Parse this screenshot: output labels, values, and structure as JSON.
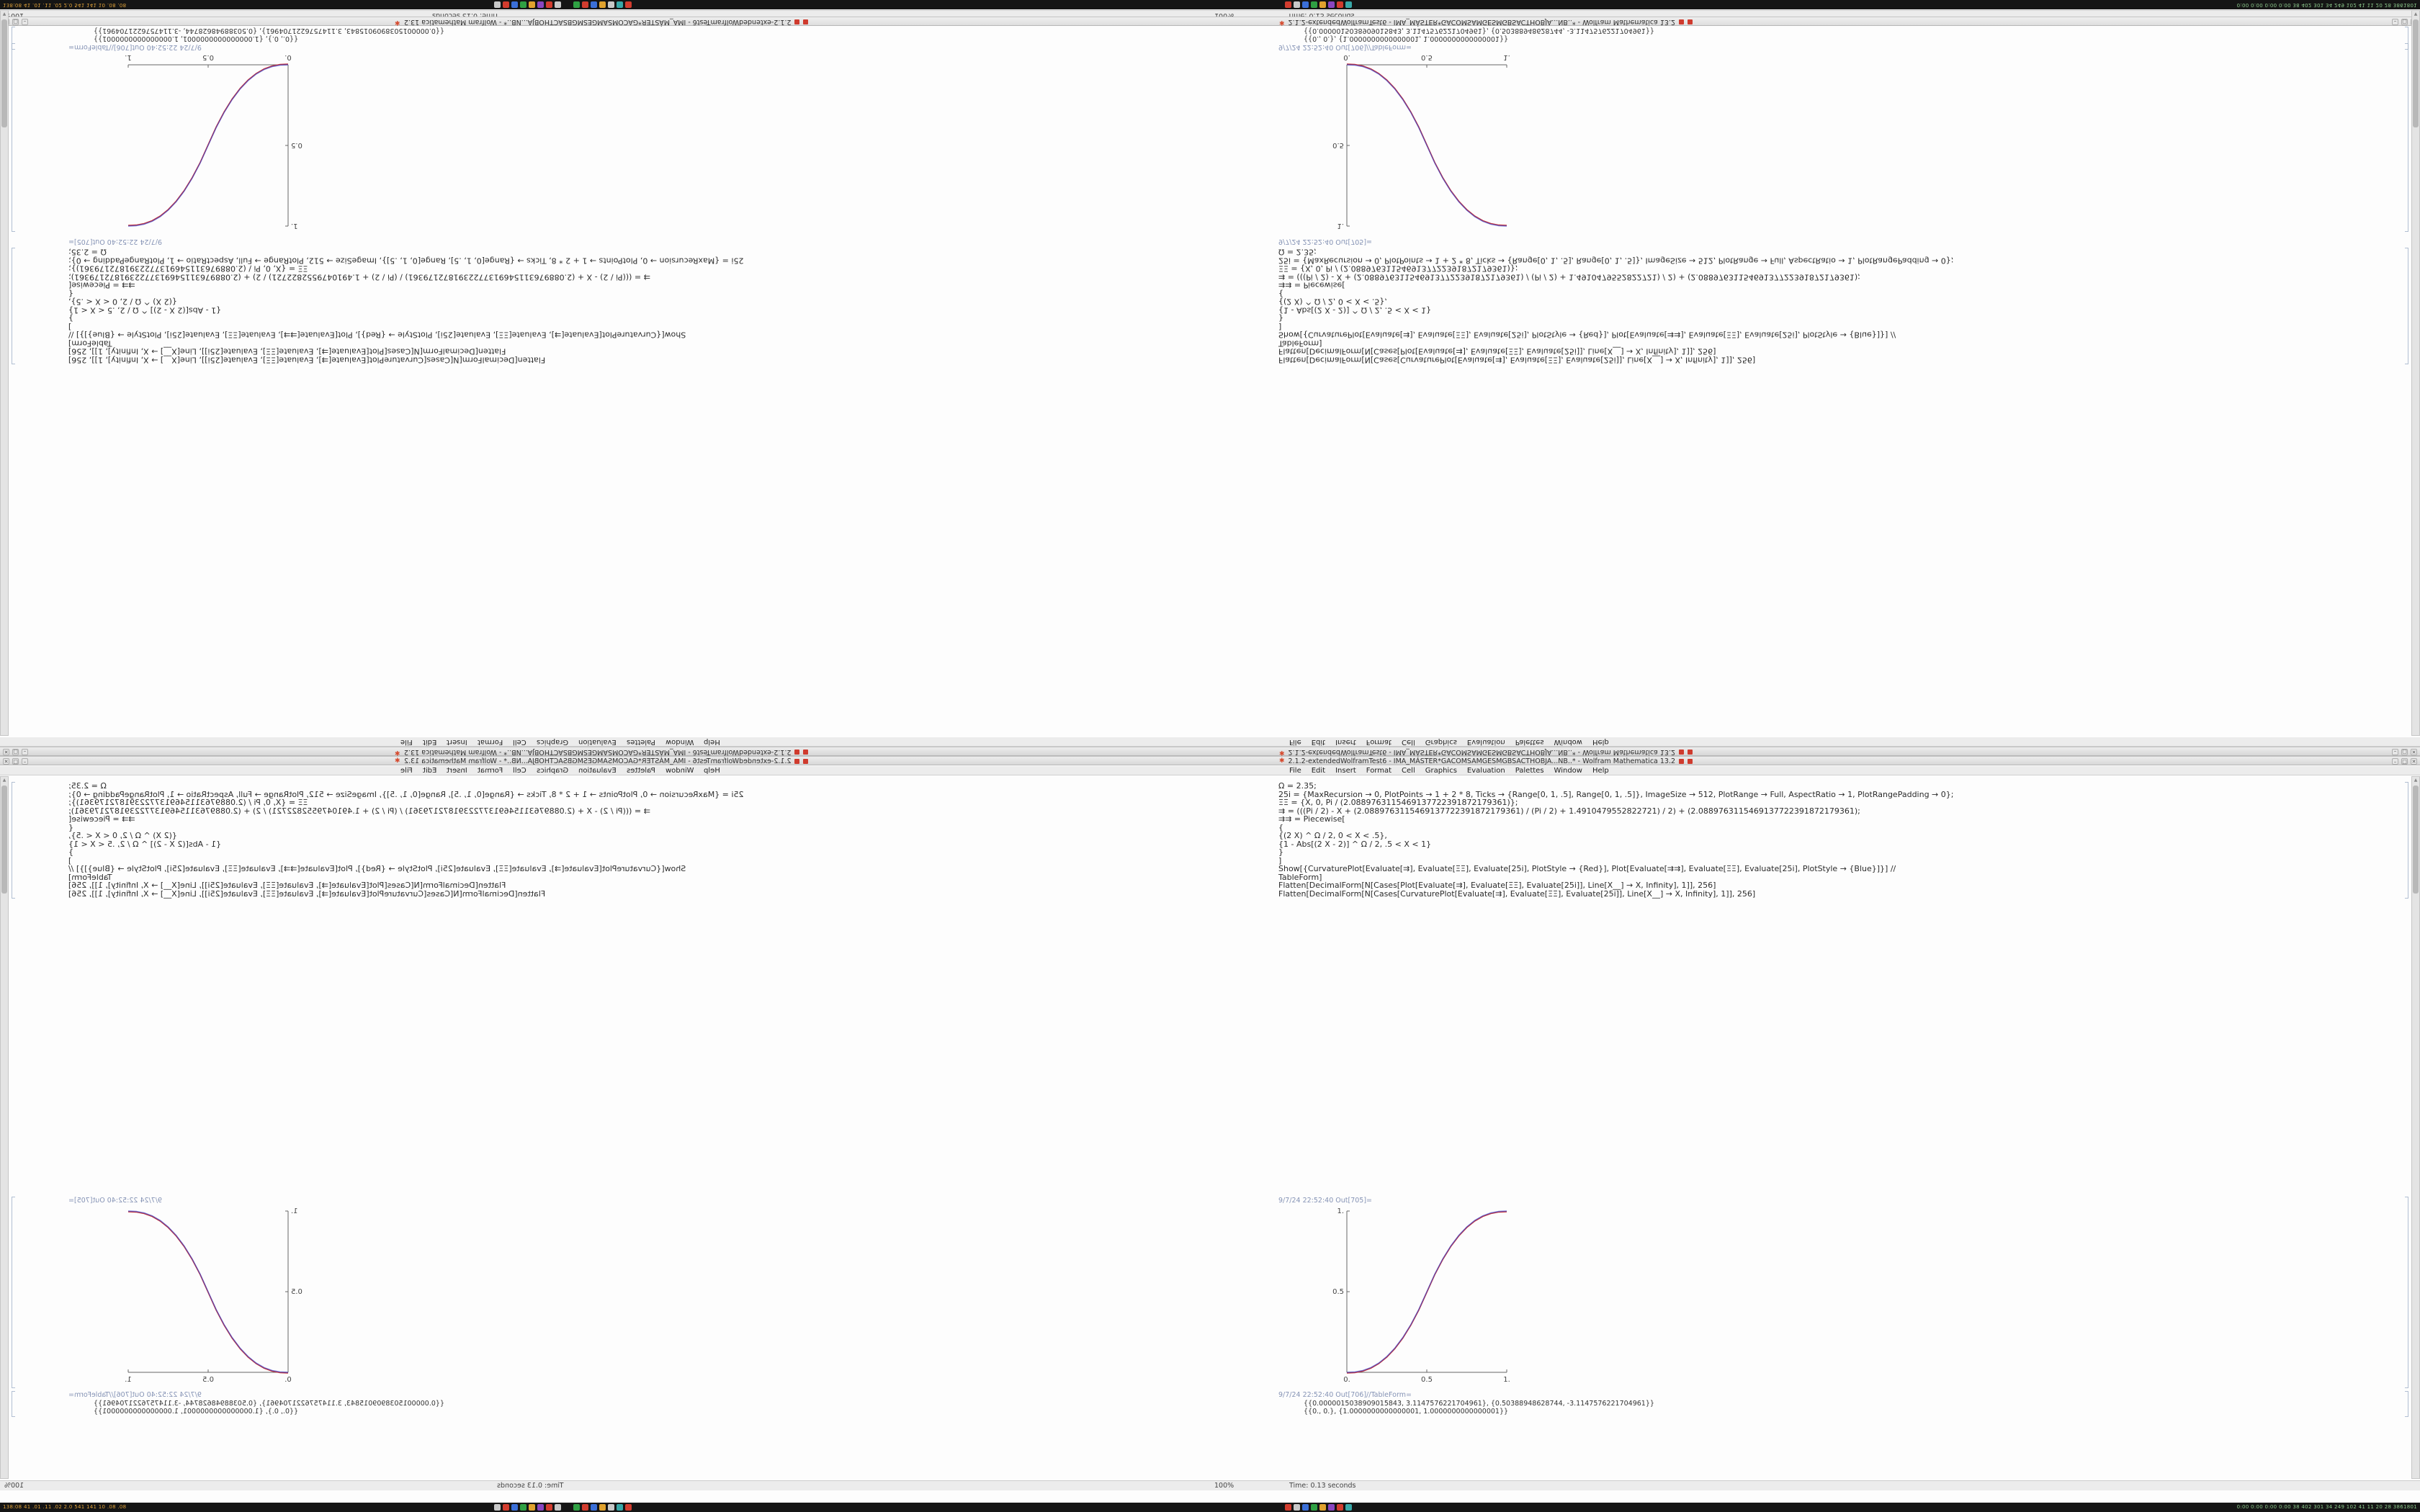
{
  "taskbar": {
    "left_text": "138:08  41 .01 .11 .02  2.0 541 141 10 .08 .08",
    "right_text": "0:00 0:00 0:00 0:00  38 402 301 34 249 102 41 11 20 28  3861801",
    "icon_colors_a": [
      "#c8c8c8",
      "#d23c2e",
      "#3a6fd8",
      "#2fa043",
      "#e0a22e",
      "#8a46c0",
      "#d23c2e",
      "#c8c8c8"
    ],
    "icon_colors_b": [
      "#2fa043",
      "#d23c2e",
      "#3a6fd8",
      "#e0a22e",
      "#c8c8c8",
      "#38a8a8",
      "#d23c2e"
    ],
    "icon_colors_c": [
      "#d23c2e",
      "#c8c8c8",
      "#3a6fd8",
      "#2fa043",
      "#e0a22e",
      "#8a46c0",
      "#d23c2e",
      "#38a8a8"
    ]
  },
  "window": {
    "title": "2.1.2-extendedWolframTest6 - IMA_MÁSTER*GACOMSAMGESMGBSACTHOBJA...NB..* - Wolfram Mathematica 13.2",
    "menu": [
      "File",
      "Edit",
      "Insert",
      "Format",
      "Cell",
      "Graphics",
      "Evaluation",
      "Palettes",
      "Window",
      "Help"
    ],
    "buttons": {
      "minimize": "–",
      "maximize": "□",
      "close": "✕"
    },
    "status_zoom": "100%",
    "status_time": "Time: 0.13 seconds"
  },
  "notebook": {
    "code": [
      "Ω = 2.35;",
      "25i = {MaxRecursion → 0, PlotPoints → 1 + 2 * 8, Ticks → {Range[0, 1, .5], Range[0, 1, .5]}, ImageSize → 512, PlotRange → Full, AspectRatio → 1, PlotRangePadding → 0};",
      "ΞΞ = {X, 0, Pi / (2.0889763115469137722391872179361)};",
      "⇉ = (((Pi / 2) - X + (2.0889763115469137722391872179361) / (Pi / 2) + 1.4910479552822721) / 2) + (2.0889763115469137722391872179361);",
      "⇉⇉ = Piecewise[",
      "{",
      "{(2 X) ^ Ω / 2, 0 < X < .5},",
      "{1 - Abs[(2 X - 2)] ^ Ω / 2, .5 < X < 1}",
      "}",
      "]",
      "Show[{CurvaturePlot[Evaluate[⇉], Evaluate[ΞΞ], Evaluate[25i], PlotStyle → {Red}], Plot[Evaluate[⇉⇉], Evaluate[ΞΞ], Evaluate[25i], PlotStyle → {Blue}]}] //",
      "TableForm]",
      "Flatten[DecimalForm[N[Cases[Plot[Evaluate[⇉], Evaluate[ΞΞ], Evaluate[25i]], Line[X__] → X, Infinity], 1]], 256]",
      "Flatten[DecimalForm[N[Cases[CurvaturePlot[Evaluate[⇉], Evaluate[ΞΞ], Evaluate[25i]], Line[X__] → X, Infinity], 1]], 256]"
    ],
    "out_plot_label": "9/7/24 22:52:40 Out[705]=",
    "out_table_label": "9/7/24 22:52:40 Out[706]//TableForm=",
    "table_lines": [
      "{{0.0000015038909015843, 3.1147576221704961}, {0.50388948628744, -3.1147576221704961}}",
      "{{0., 0.}, {1.0000000000000001, 1.0000000000000001}}"
    ]
  },
  "chart_data": {
    "type": "line",
    "title": "",
    "xlabel": "",
    "ylabel": "",
    "xlim": [
      0,
      1
    ],
    "ylim": [
      0,
      1
    ],
    "grid": false,
    "legend": "none",
    "xticks": [
      "0.",
      "0.5",
      "1."
    ],
    "yticks": [
      "0.",
      "0.5",
      "1."
    ],
    "x": [
      0,
      0.05,
      0.1,
      0.15,
      0.2,
      0.25,
      0.3,
      0.35,
      0.4,
      0.45,
      0.5,
      0.55,
      0.6,
      0.65,
      0.7,
      0.75,
      0.8,
      0.85,
      0.9,
      0.95,
      1
    ],
    "series": [
      {
        "name": "CurvaturePlot (Red)",
        "color": "#c03038",
        "values": [
          0,
          0.00223,
          0.01139,
          0.02953,
          0.05804,
          0.09808,
          0.15053,
          0.21626,
          0.29596,
          0.39034,
          0.5,
          0.60966,
          0.70404,
          0.78374,
          0.84947,
          0.90192,
          0.94196,
          0.97047,
          0.98861,
          0.99777,
          1
        ]
      },
      {
        "name": "Plot (Blue)",
        "color": "#4246c8",
        "values": [
          0,
          0.00223,
          0.01139,
          0.02953,
          0.05804,
          0.09808,
          0.15053,
          0.21626,
          0.29596,
          0.39034,
          0.5,
          0.60966,
          0.70404,
          0.78374,
          0.84947,
          0.90192,
          0.94196,
          0.97047,
          0.98861,
          0.99777,
          1
        ]
      }
    ]
  }
}
